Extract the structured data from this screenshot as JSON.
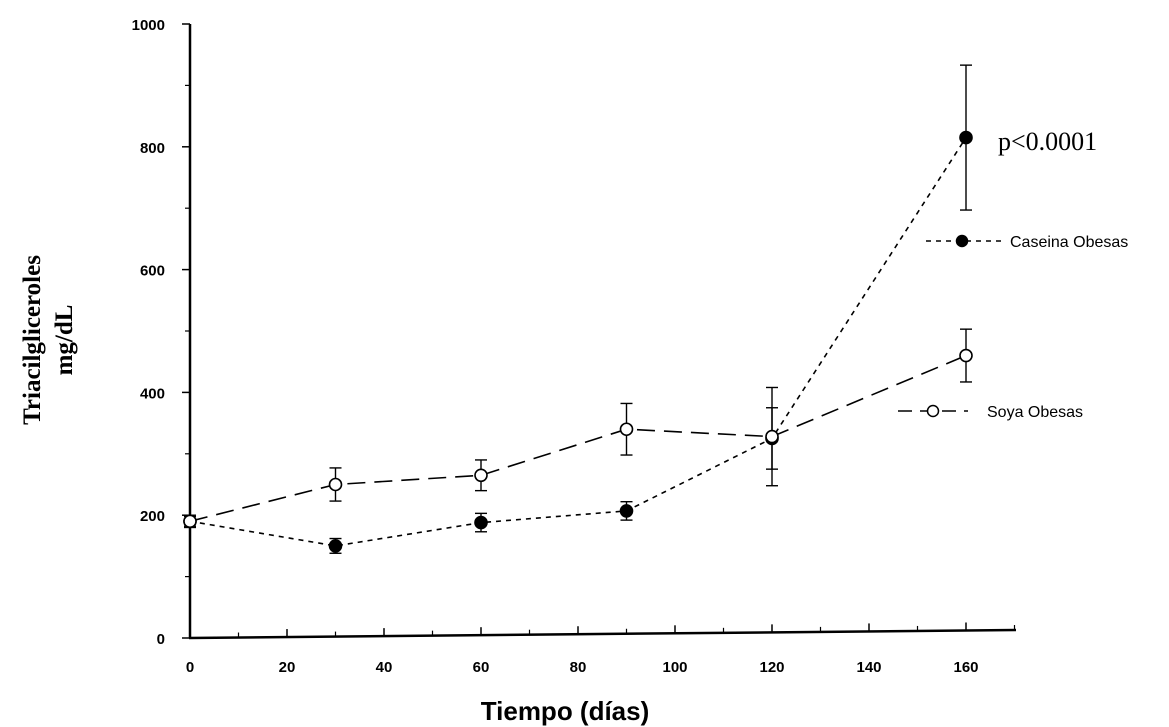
{
  "chart_data": {
    "type": "line",
    "title": "",
    "xlabel": "Tiempo (días)",
    "ylabel_lines": [
      "Triacilgliceroles",
      "mg/dL"
    ],
    "xlim": [
      0,
      170
    ],
    "ylim": [
      0,
      1000
    ],
    "x_ticks": [
      0,
      20,
      40,
      60,
      80,
      100,
      120,
      140,
      160
    ],
    "y_ticks": [
      0,
      200,
      400,
      600,
      800,
      1000
    ],
    "grid": false,
    "legend_position": "right",
    "series": [
      {
        "name": "Caseina Obesas",
        "marker": "filled-circle",
        "line_style": "short-dash",
        "color": "#000000",
        "x": [
          0,
          30,
          60,
          90,
          120,
          160
        ],
        "y": [
          190,
          150,
          188,
          207,
          325,
          815
        ],
        "error": [
          10,
          12,
          15,
          15,
          50,
          118
        ]
      },
      {
        "name": "Soya Obesas",
        "marker": "open-circle",
        "line_style": "long-dash",
        "color": "#000000",
        "x": [
          0,
          30,
          60,
          90,
          120,
          160
        ],
        "y": [
          190,
          250,
          265,
          340,
          328,
          460
        ],
        "error": [
          8,
          27,
          25,
          42,
          80,
          43
        ]
      }
    ],
    "annotations": [
      {
        "text": "p<0.0001",
        "x": 160,
        "y": 812
      }
    ]
  }
}
